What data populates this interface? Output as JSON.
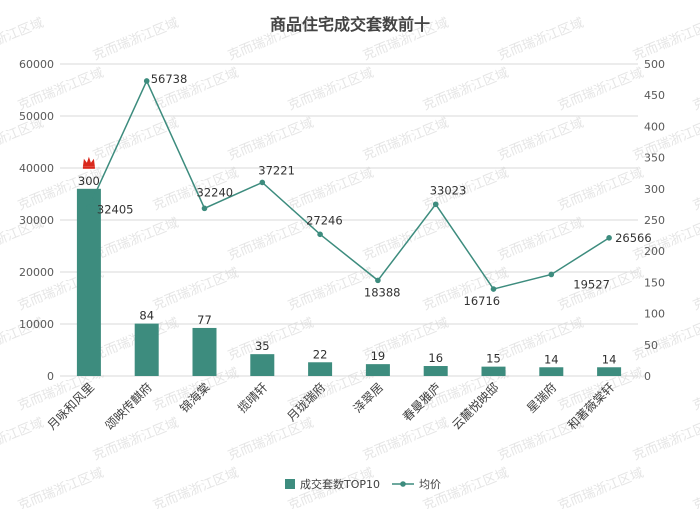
{
  "chart_data": {
    "type": "bar+line",
    "title": "商品住宅成交套数前十",
    "categories": [
      "月咏和风里",
      "颂映传麒府",
      "锦海棠",
      "揽晴轩",
      "月珑瑞府",
      "泽翠居",
      "春曼雅庐",
      "云麓悦映邸",
      "星瑞府",
      "和著薇棠轩"
    ],
    "series": [
      {
        "name": "成交套数TOP10",
        "type": "bar",
        "axis": "right",
        "values": [
          300,
          84,
          77,
          35,
          22,
          19,
          16,
          15,
          14,
          14
        ],
        "color": "#3d8c7e"
      },
      {
        "name": "均价",
        "type": "line",
        "axis": "left",
        "values": [
          32405,
          56738,
          32240,
          37221,
          27246,
          18388,
          33023,
          16716,
          19527,
          26566
        ],
        "color": "#3d8c7e"
      }
    ],
    "y_left": {
      "min": 0,
      "max": 60000,
      "ticks": [
        "0",
        "10000",
        "20000",
        "30000",
        "40000",
        "50000",
        "60000"
      ]
    },
    "y_right": {
      "min": 0,
      "max": 500,
      "ticks": [
        "0",
        "50",
        "100",
        "150",
        "200",
        "250",
        "300",
        "350",
        "400",
        "450",
        "500"
      ]
    },
    "grid": true,
    "legend": "bottom",
    "watermark": "克而瑞浙江区域",
    "highlight_icon": "crown-icon"
  }
}
